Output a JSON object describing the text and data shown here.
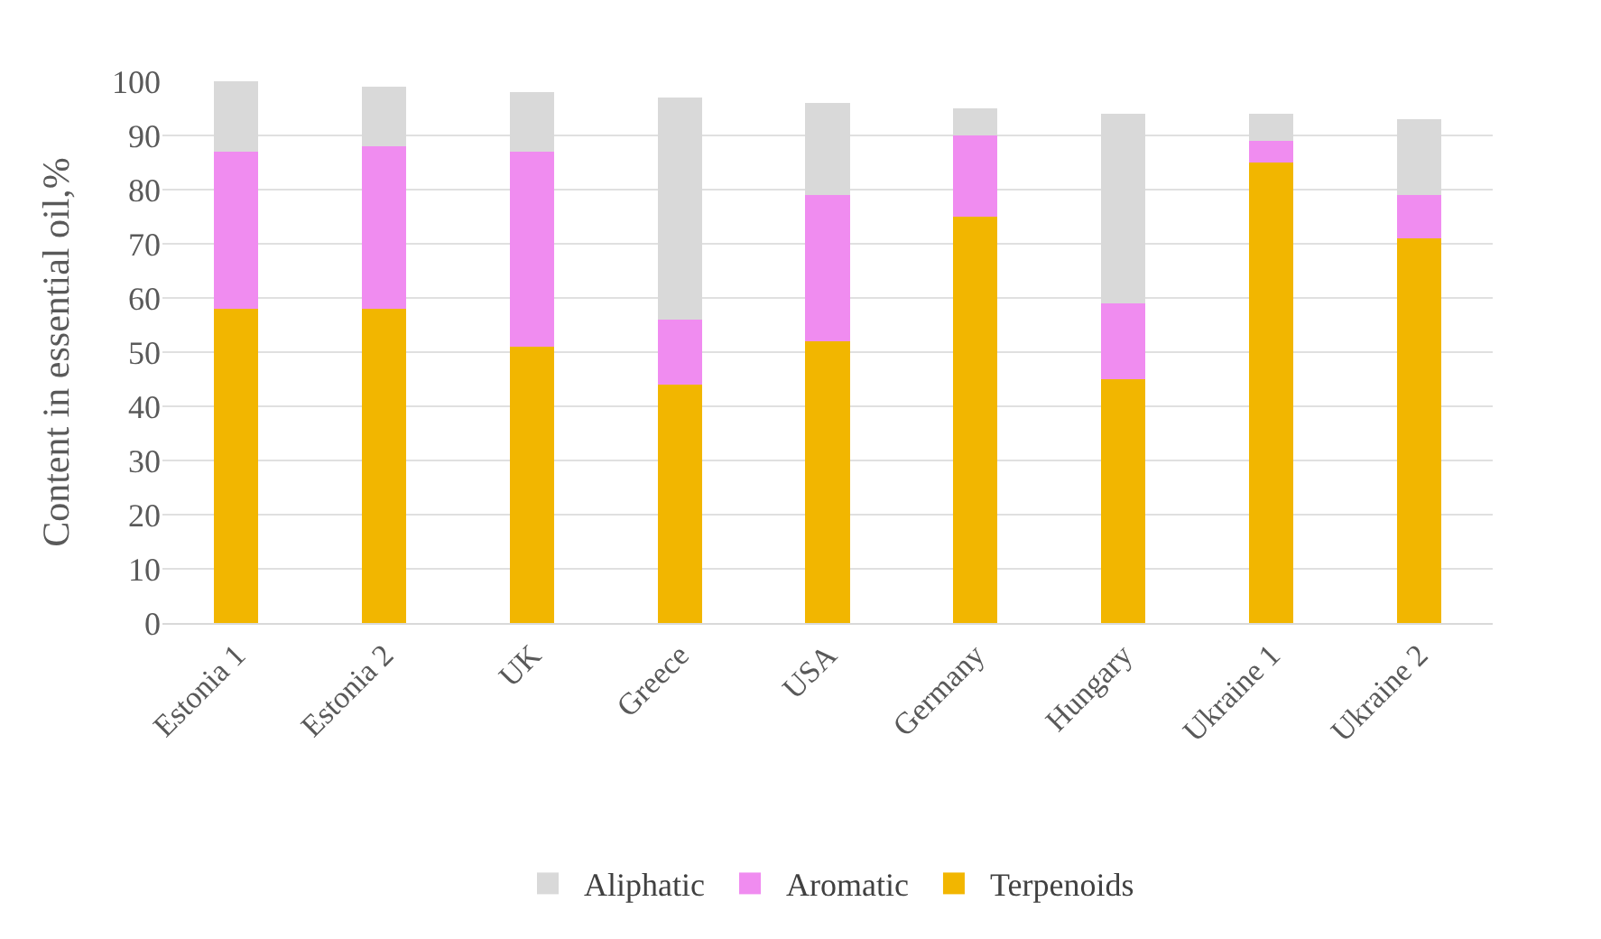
{
  "chart_data": {
    "type": "bar",
    "stacked": true,
    "ylabel": "Content in essential oil,%",
    "categories": [
      "Estonia 1",
      "Estonia 2",
      "UK",
      "Greece",
      "USA",
      "Germany",
      "Hungary",
      "Ukraine 1",
      "Ukraine 2"
    ],
    "series": [
      {
        "name": "Terpenoids",
        "color": "#f2b600",
        "values": [
          58,
          58,
          51,
          44,
          52,
          75,
          45,
          85,
          71
        ]
      },
      {
        "name": "Aromatic",
        "color": "#f08cf0",
        "values": [
          29,
          30,
          36,
          12,
          27,
          15,
          14,
          4,
          8
        ]
      },
      {
        "name": "Aliphatic",
        "color": "#d9d9d9",
        "values": [
          13,
          11,
          11,
          41,
          17,
          5,
          35,
          5,
          14
        ]
      }
    ],
    "ylim": [
      0,
      100
    ],
    "yticks": [
      0,
      10,
      20,
      30,
      40,
      50,
      60,
      70,
      80,
      90,
      100
    ],
    "grid": "y",
    "legend": "bottom"
  }
}
